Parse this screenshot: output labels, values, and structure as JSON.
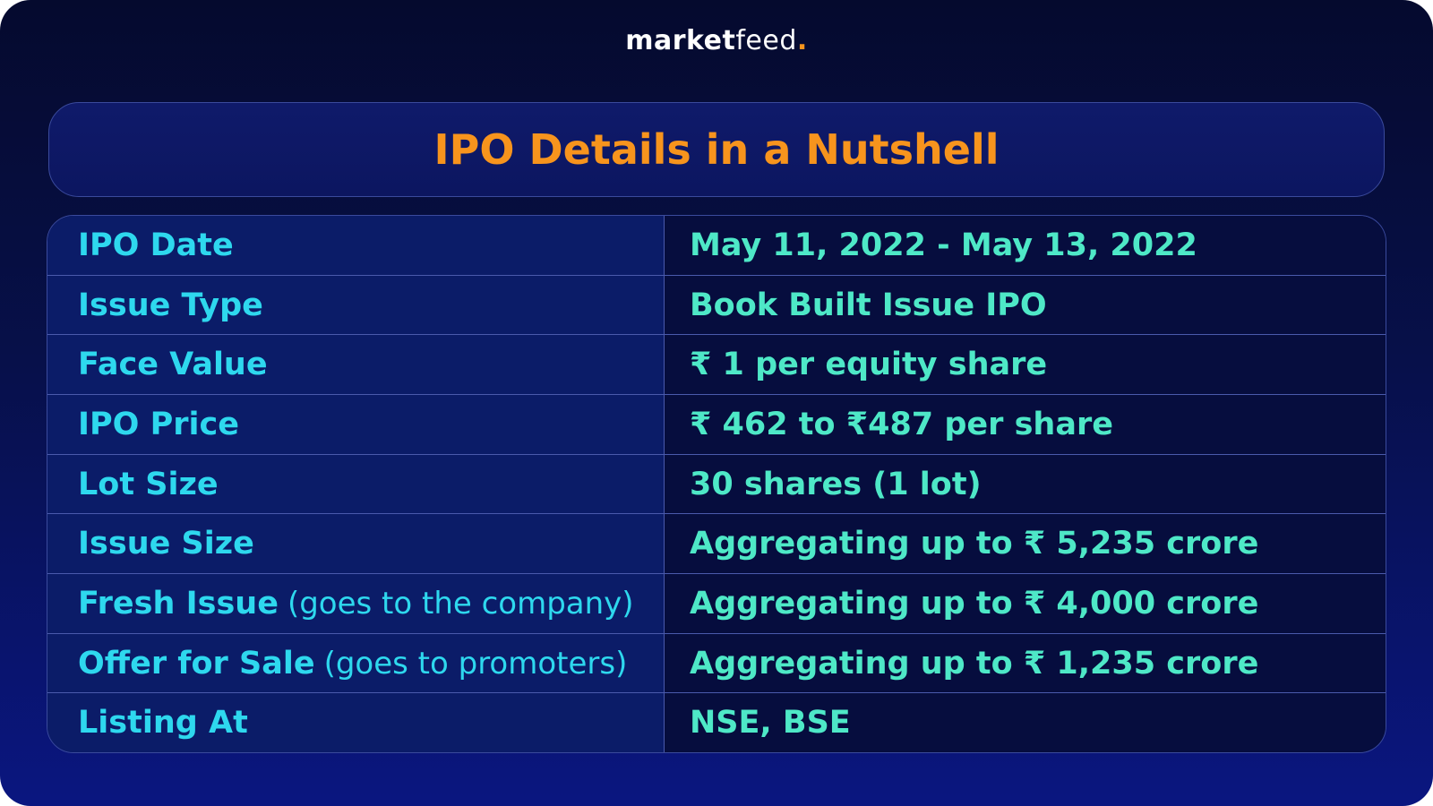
{
  "brand": {
    "strong": "market",
    "light": "feed",
    "dot": "."
  },
  "title": "IPO Details in a Nutshell",
  "rows": [
    {
      "label": "IPO Date",
      "note": "",
      "value": "May 11, 2022 - May 13, 2022"
    },
    {
      "label": "Issue Type",
      "note": "",
      "value": "Book Built Issue IPO"
    },
    {
      "label": "Face Value",
      "note": "",
      "value": "₹ 1 per equity share"
    },
    {
      "label": "IPO Price",
      "note": "",
      "value": "₹ 462 to ₹487 per share"
    },
    {
      "label": "Lot Size",
      "note": "",
      "value": "30 shares (1 lot)"
    },
    {
      "label": "Issue Size",
      "note": "",
      "value": "Aggregating up to ₹ 5,235 crore"
    },
    {
      "label": "Fresh Issue",
      "note": "(goes to the company)",
      "value": "Aggregating up to ₹ 4,000 crore"
    },
    {
      "label": "Offer for Sale",
      "note": "(goes to promoters)",
      "value": "Aggregating up to ₹ 1,235 crore"
    },
    {
      "label": "Listing At",
      "note": "",
      "value": "NSE, BSE"
    }
  ],
  "colors": {
    "title": "#f7941d",
    "label": "#2ed8ee",
    "value": "#4ee8c7",
    "background": "#07104a"
  }
}
